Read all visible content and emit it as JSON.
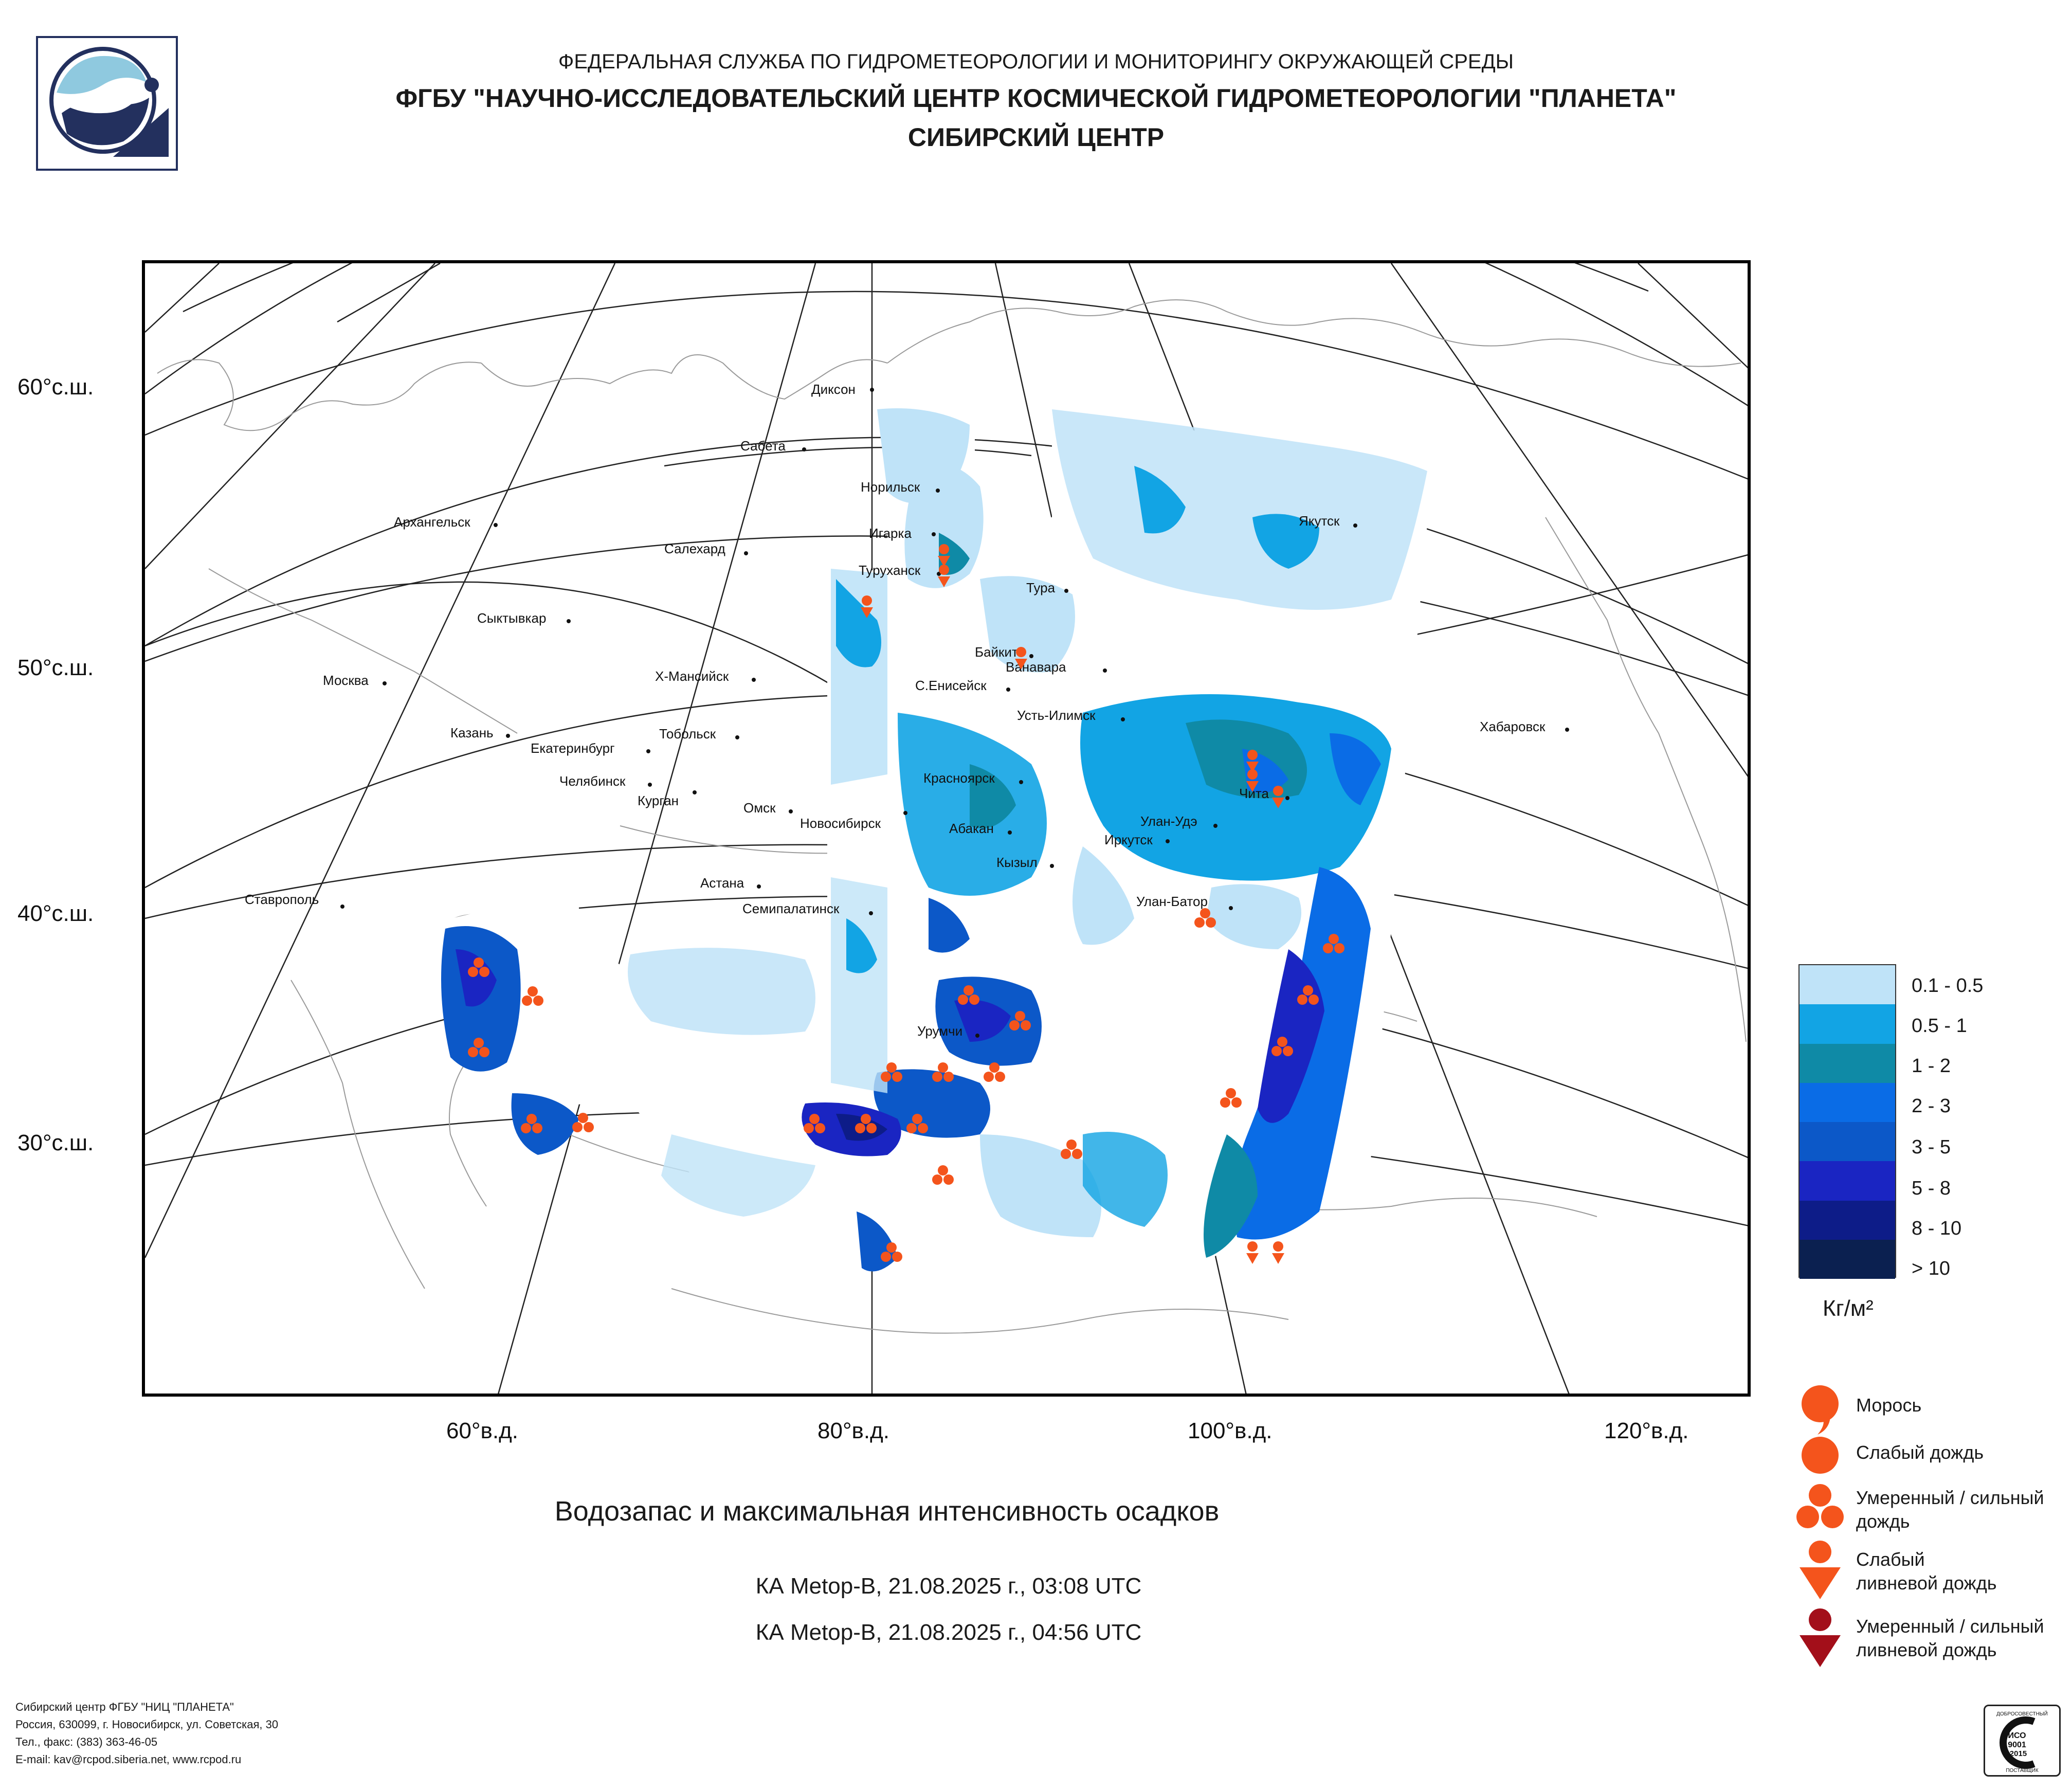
{
  "header": {
    "agency": "ФЕДЕРАЛЬНАЯ СЛУЖБА ПО ГИДРОМЕТЕОРОЛОГИИ И МОНИТОРИНГУ ОКРУЖАЮЩЕЙ СРЕДЫ",
    "organization": "ФГБУ \"НАУЧНО-ИССЛЕДОВАТЕЛЬСКИЙ ЦЕНТР КОСМИЧЕСКОЙ ГИДРОМЕТЕОРОЛОГИИ \"ПЛАНЕТА\"",
    "center": "СИБИРСКИЙ ЦЕНТР"
  },
  "map": {
    "lat_labels": [
      "60°с.ш.",
      "50°с.ш.",
      "40°с.ш.",
      "30°с.ш."
    ],
    "lon_labels": [
      "60°в.д.",
      "80°в.д.",
      "100°в.д.",
      "120°в.д."
    ],
    "cities": [
      "Диксон",
      "Сабета",
      "Норильск",
      "Игарка",
      "Туруханск",
      "Салехард",
      "Архангельск",
      "Якутск",
      "Тура",
      "Сыктывкар",
      "Байкит",
      "Ванавара",
      "С.Енисейск",
      "Москва",
      "Х-Мансийск",
      "Усть-Илимск",
      "Казань",
      "Екатеринбург",
      "Тобольск",
      "Хабаровск",
      "Челябинск",
      "Курган",
      "Красноярск",
      "Чита",
      "Омск",
      "Новосибирск",
      "Улан-Удэ",
      "Абакан",
      "Иркутск",
      "Кызыл",
      "Ставрополь",
      "Астана",
      "Семипалатинск",
      "Улан-Батор",
      "Урумчи"
    ]
  },
  "title": "Водозапас и максимальная интенсивность осадков",
  "passes": [
    "КА Metop-B, 21.08.2025 г., 03:08 UTC",
    "КА Metop-B, 21.08.2025 г., 04:56 UTC"
  ],
  "legend": {
    "classes": [
      "0.1 - 0.5",
      "0.5 - 1",
      "1 - 2",
      "2 - 3",
      "3 - 5",
      "5 - 8",
      "8 - 10",
      "> 10"
    ],
    "colors": [
      "#bfe3f8",
      "#12a4e4",
      "#0f8aa6",
      "#0a6ce6",
      "#0c58c8",
      "#1a25c2",
      "#0d1c88",
      "#0b2050"
    ],
    "unit": "Кг/м²"
  },
  "symbols": {
    "drizzle": "Морось",
    "light_rain": "Слабый дождь",
    "moderate_rain": "Умеренный / сильный дождь",
    "light_shower": "Слабый ливневой дождь",
    "heavy_shower": "Умеренный / сильный ливневой дождь",
    "color_main": "#f4541c",
    "color_heavy": "#a30f1a"
  },
  "footer": {
    "line1": "Сибирский центр ФГБУ \"НИЦ \"ПЛАНЕТА\"",
    "line2": "Россия, 630099, г. Новосибирск, ул. Советская, 30",
    "line3": "Тел., факс: (383) 363-46-05",
    "line4": "E-mail: kav@rcpod.siberia.net, www.rcpod.ru"
  },
  "badge": {
    "top": "ДОБРОСОВЕСТНЫЙ",
    "iso": "ИСО",
    "num": "9001",
    "year": "-2015",
    "bottom": "ПОСТАВЩИК"
  }
}
